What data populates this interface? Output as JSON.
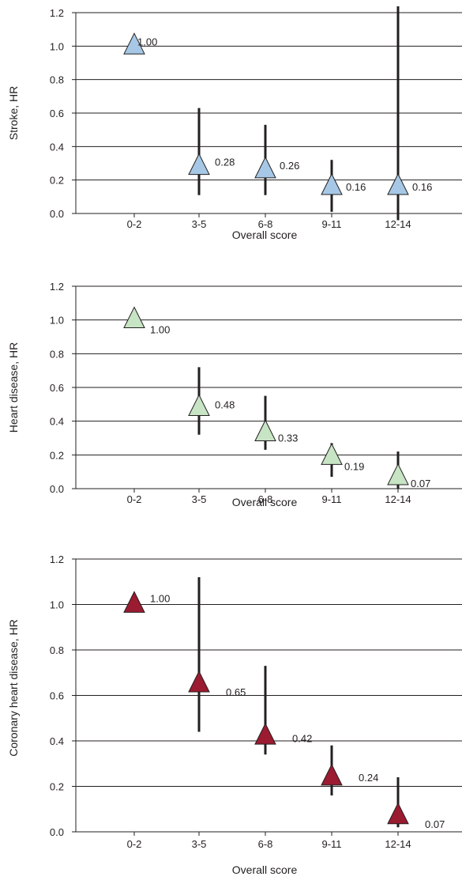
{
  "chart_data": [
    {
      "type": "scatter",
      "title": "",
      "xlabel": "Overall score",
      "ylabel": "Stroke, HR",
      "categories": [
        "0-2",
        "3-5",
        "6-8",
        "9-11",
        "12-14"
      ],
      "values": [
        1.0,
        0.28,
        0.26,
        0.16,
        0.16
      ],
      "value_labels": [
        "1.00",
        "0.28",
        "0.26",
        "0.16",
        "0.16"
      ],
      "ci_lower": [
        null,
        0.11,
        0.11,
        0.01,
        -0.04
      ],
      "ci_upper": [
        null,
        0.63,
        0.53,
        0.32,
        1.24
      ],
      "ylim": [
        0,
        1.2
      ],
      "yticks": [
        "0.0",
        "0.2",
        "0.4",
        "0.6",
        "0.8",
        "1.0",
        "1.2"
      ],
      "grid": true,
      "marker": "triangle",
      "color": "#a6c8e6"
    },
    {
      "type": "scatter",
      "title": "",
      "xlabel": "Overall score",
      "ylabel": "Heart disease, HR",
      "categories": [
        "0-2",
        "3-5",
        "6-8",
        "9-11",
        "12-14"
      ],
      "values": [
        1.0,
        0.48,
        0.33,
        0.19,
        0.07
      ],
      "value_labels": [
        "1.00",
        "0.48",
        "0.33",
        "0.19",
        "0.07"
      ],
      "ci_lower": [
        null,
        0.32,
        0.23,
        0.07,
        0.0
      ],
      "ci_upper": [
        null,
        0.72,
        0.55,
        0.27,
        0.22
      ],
      "ylim": [
        0,
        1.2
      ],
      "yticks": [
        "0.0",
        "0.2",
        "0.4",
        "0.6",
        "0.8",
        "1.0",
        "1.2"
      ],
      "grid": true,
      "marker": "triangle",
      "color": "#c7e4c4"
    },
    {
      "type": "scatter",
      "title": "",
      "xlabel": "Overall score",
      "ylabel": "Coronary heart disease, HR",
      "categories": [
        "0-2",
        "3-5",
        "6-8",
        "9-11",
        "12-14"
      ],
      "values": [
        1.0,
        0.65,
        0.42,
        0.24,
        0.07
      ],
      "value_labels": [
        "1.00",
        "0.65",
        "0.42",
        "0.24",
        "0.07"
      ],
      "ci_lower": [
        null,
        0.44,
        0.34,
        0.16,
        0.02
      ],
      "ci_upper": [
        null,
        1.12,
        0.73,
        0.38,
        0.24
      ],
      "ylim": [
        0,
        1.2
      ],
      "yticks": [
        "0.0",
        "0.2",
        "0.4",
        "0.6",
        "0.8",
        "1.0",
        "1.2"
      ],
      "grid": true,
      "marker": "triangle",
      "color": "#9b1b30"
    }
  ]
}
